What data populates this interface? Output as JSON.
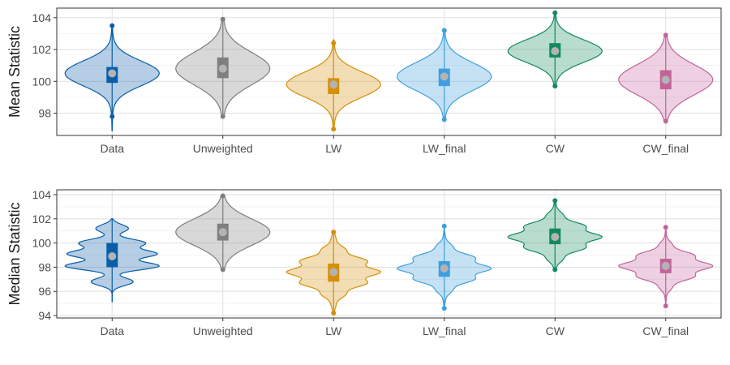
{
  "chart_data": [
    {
      "type": "violin",
      "ylabel": "Mean Statistic",
      "ylim": [
        96.6,
        104.6
      ],
      "yticks": [
        98,
        100,
        102,
        104
      ],
      "grid": true,
      "categories": [
        "Data",
        "Unweighted",
        "LW",
        "LW_final",
        "CW",
        "CW_final"
      ],
      "colors": [
        "#0a5ea8",
        "#7f7f7f",
        "#d4900b",
        "#3f9fde",
        "#138a5e",
        "#c2649a"
      ],
      "series": [
        {
          "mean": 100.5,
          "q1": 99.9,
          "q3": 100.9,
          "min": 96.9,
          "max": 103.5,
          "outliers": [
            97.8,
            103.5
          ]
        },
        {
          "mean": 100.8,
          "q1": 100.2,
          "q3": 101.5,
          "min": 97.7,
          "max": 103.9,
          "outliers": [
            97.8,
            103.9
          ]
        },
        {
          "mean": 99.8,
          "q1": 99.2,
          "q3": 100.2,
          "min": 97.0,
          "max": 102.6,
          "outliers": [
            97.0,
            102.4
          ]
        },
        {
          "mean": 100.3,
          "q1": 99.7,
          "q3": 100.8,
          "min": 97.6,
          "max": 103.2,
          "outliers": [
            97.6,
            103.2
          ]
        },
        {
          "mean": 101.9,
          "q1": 101.5,
          "q3": 102.4,
          "min": 99.7,
          "max": 104.3,
          "outliers": [
            99.7,
            104.3
          ]
        },
        {
          "mean": 100.1,
          "q1": 99.5,
          "q3": 100.7,
          "min": 97.5,
          "max": 102.9,
          "outliers": [
            97.5,
            102.9
          ]
        }
      ]
    },
    {
      "type": "violin",
      "ylabel": "Median Statistic",
      "ylim": [
        93.8,
        104.4
      ],
      "yticks": [
        94,
        96,
        98,
        100,
        102,
        104
      ],
      "grid": true,
      "categories": [
        "Data",
        "Unweighted",
        "LW",
        "LW_final",
        "CW",
        "CW_final"
      ],
      "colors": [
        "#0a5ea8",
        "#7f7f7f",
        "#d4900b",
        "#3f9fde",
        "#138a5e",
        "#c2649a"
      ],
      "series": [
        {
          "mean": 98.9,
          "q1": 98.0,
          "q3": 100.0,
          "min": 95.1,
          "max": 102.0,
          "outliers": []
        },
        {
          "mean": 100.9,
          "q1": 100.2,
          "q3": 101.6,
          "min": 97.8,
          "max": 103.9,
          "outliers": [
            97.8,
            103.9
          ]
        },
        {
          "mean": 97.6,
          "q1": 96.8,
          "q3": 98.3,
          "min": 94.2,
          "max": 100.9,
          "outliers": [
            94.2,
            100.9
          ]
        },
        {
          "mean": 97.9,
          "q1": 97.2,
          "q3": 98.5,
          "min": 94.6,
          "max": 101.4,
          "outliers": [
            94.6,
            101.4
          ]
        },
        {
          "mean": 100.5,
          "q1": 99.9,
          "q3": 101.2,
          "min": 97.8,
          "max": 103.5,
          "outliers": [
            97.8,
            103.5
          ]
        },
        {
          "mean": 98.1,
          "q1": 97.5,
          "q3": 98.7,
          "min": 94.8,
          "max": 101.3,
          "outliers": [
            94.8,
            101.3
          ]
        }
      ]
    }
  ]
}
